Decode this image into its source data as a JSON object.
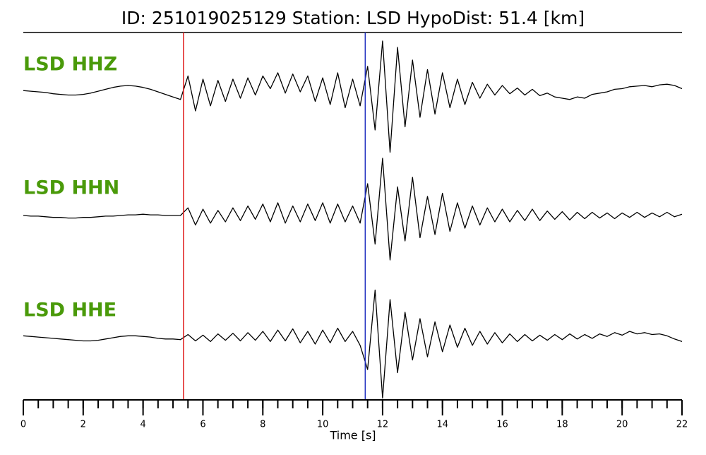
{
  "chart_data": {
    "type": "waveform",
    "title": "ID: 251019025129   Station: LSD   HypoDist:    51.4 [km]",
    "x_label": "Time [s]",
    "xlim": [
      0,
      22
    ],
    "xticks": [
      0,
      2,
      4,
      6,
      8,
      10,
      12,
      14,
      16,
      18,
      20,
      22
    ],
    "xminor_step": 0.5,
    "ylim": [
      -1,
      1
    ],
    "label_color": "#4a9a0a",
    "vlines": [
      {
        "x": 5.35,
        "color": "#e02020"
      },
      {
        "x": 11.42,
        "color": "#2030c0"
      }
    ],
    "x": [
      0,
      0.25,
      0.5,
      0.75,
      1,
      1.25,
      1.5,
      1.75,
      2,
      2.25,
      2.5,
      2.75,
      3,
      3.25,
      3.5,
      3.75,
      4,
      4.25,
      4.5,
      4.75,
      5,
      5.25,
      5.5,
      5.75,
      6,
      6.25,
      6.5,
      6.75,
      7,
      7.25,
      7.5,
      7.75,
      8,
      8.25,
      8.5,
      8.75,
      9,
      9.25,
      9.5,
      9.75,
      10,
      10.25,
      10.5,
      10.75,
      11,
      11.25,
      11.5,
      11.75,
      12,
      12.25,
      12.5,
      12.75,
      13,
      13.25,
      13.5,
      13.75,
      14,
      14.25,
      14.5,
      14.75,
      15,
      15.25,
      15.5,
      15.75,
      16,
      16.25,
      16.5,
      16.75,
      17,
      17.25,
      17.5,
      17.75,
      18,
      18.25,
      18.5,
      18.75,
      19,
      19.25,
      19.5,
      19.75,
      20,
      20.25,
      20.5,
      20.75,
      21,
      21.25,
      21.5,
      21.75,
      22
    ],
    "series": [
      {
        "name": "LSD HHZ",
        "color": "#000000",
        "values": [
          0.02,
          0.01,
          0,
          -0.01,
          -0.03,
          -0.04,
          -0.05,
          -0.05,
          -0.04,
          -0.02,
          0.01,
          0.04,
          0.07,
          0.09,
          0.1,
          0.09,
          0.07,
          0.04,
          0,
          -0.04,
          -0.08,
          -0.12,
          0.25,
          -0.3,
          0.2,
          -0.22,
          0.18,
          -0.15,
          0.2,
          -0.1,
          0.22,
          -0.05,
          0.25,
          0.05,
          0.3,
          -0.02,
          0.28,
          0,
          0.25,
          -0.15,
          0.22,
          -0.2,
          0.3,
          -0.25,
          0.2,
          -0.22,
          0.4,
          -0.6,
          0.8,
          -0.95,
          0.7,
          -0.55,
          0.5,
          -0.4,
          0.35,
          -0.35,
          0.3,
          -0.25,
          0.2,
          -0.2,
          0.15,
          -0.1,
          0.12,
          -0.05,
          0.1,
          -0.03,
          0.06,
          -0.05,
          0.04,
          -0.06,
          -0.02,
          -0.08,
          -0.1,
          -0.12,
          -0.08,
          -0.1,
          -0.04,
          -0.02,
          0,
          0.04,
          0.05,
          0.08,
          0.09,
          0.1,
          0.08,
          0.11,
          0.12,
          0.1,
          0.05
        ]
      },
      {
        "name": "LSD HHN",
        "color": "#000000",
        "values": [
          0,
          -0.01,
          -0.01,
          -0.02,
          -0.03,
          -0.03,
          -0.04,
          -0.04,
          -0.03,
          -0.03,
          -0.02,
          -0.01,
          -0.01,
          0,
          0.01,
          0.01,
          0.02,
          0.01,
          0.01,
          0,
          0,
          0,
          0.12,
          -0.15,
          0.1,
          -0.12,
          0.08,
          -0.1,
          0.12,
          -0.08,
          0.15,
          -0.06,
          0.18,
          -0.1,
          0.2,
          -0.12,
          0.15,
          -0.1,
          0.18,
          -0.08,
          0.2,
          -0.12,
          0.18,
          -0.1,
          0.15,
          -0.12,
          0.5,
          -0.45,
          0.9,
          -0.7,
          0.45,
          -0.4,
          0.6,
          -0.35,
          0.3,
          -0.3,
          0.35,
          -0.25,
          0.2,
          -0.2,
          0.15,
          -0.15,
          0.12,
          -0.1,
          0.1,
          -0.1,
          0.08,
          -0.08,
          0.1,
          -0.08,
          0.07,
          -0.06,
          0.06,
          -0.07,
          0.05,
          -0.05,
          0.05,
          -0.04,
          0.04,
          -0.05,
          0.04,
          -0.03,
          0.05,
          -0.03,
          0.04,
          -0.02,
          0.05,
          -0.02,
          0.02
        ]
      },
      {
        "name": "LSD HHE",
        "color": "#000000",
        "values": [
          0.03,
          0.02,
          0.01,
          0,
          -0.01,
          -0.02,
          -0.03,
          -0.04,
          -0.05,
          -0.05,
          -0.04,
          -0.02,
          0,
          0.02,
          0.03,
          0.03,
          0.02,
          0.01,
          -0.01,
          -0.02,
          -0.02,
          -0.03,
          0.05,
          -0.05,
          0.04,
          -0.06,
          0.06,
          -0.04,
          0.07,
          -0.05,
          0.08,
          -0.04,
          0.1,
          -0.06,
          0.12,
          -0.05,
          0.14,
          -0.08,
          0.1,
          -0.1,
          0.12,
          -0.08,
          0.15,
          -0.06,
          0.1,
          -0.12,
          -0.5,
          0.75,
          -0.95,
          0.6,
          -0.55,
          0.4,
          -0.35,
          0.3,
          -0.3,
          0.25,
          -0.22,
          0.2,
          -0.15,
          0.15,
          -0.12,
          0.1,
          -0.1,
          0.08,
          -0.08,
          0.06,
          -0.06,
          0.05,
          -0.05,
          0.04,
          -0.04,
          0.05,
          -0.03,
          0.06,
          -0.02,
          0.05,
          -0.01,
          0.06,
          0.02,
          0.08,
          0.04,
          0.1,
          0.06,
          0.08,
          0.05,
          0.06,
          0.03,
          -0.02,
          -0.06
        ]
      }
    ]
  }
}
